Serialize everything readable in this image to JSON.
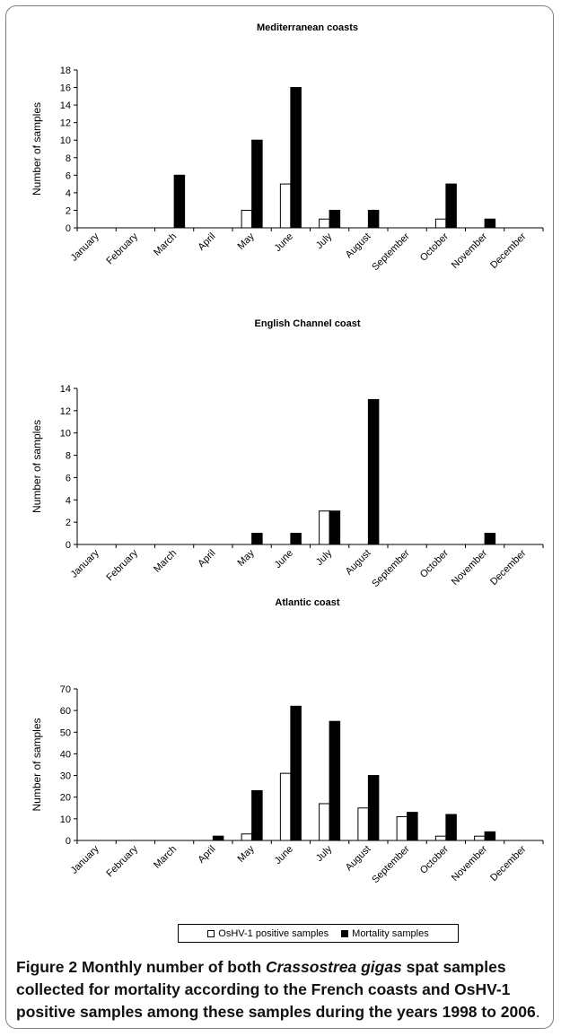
{
  "chart_data": [
    {
      "type": "bar",
      "title": "Mediterranean coasts",
      "ylabel": "Number of samples",
      "ylim": [
        0,
        18
      ],
      "yticks": [
        0,
        2,
        4,
        6,
        8,
        10,
        12,
        14,
        16,
        18
      ],
      "categories": [
        "January",
        "February",
        "March",
        "April",
        "May",
        "June",
        "July",
        "August",
        "September",
        "October",
        "November",
        "December"
      ],
      "series": [
        {
          "name": "OsHV-1 positive samples",
          "values": [
            0,
            0,
            0,
            0,
            2,
            5,
            1,
            0,
            0,
            1,
            0,
            0
          ]
        },
        {
          "name": "Mortality samples",
          "values": [
            0,
            0,
            6,
            0,
            10,
            16,
            2,
            2,
            0,
            5,
            1,
            0
          ]
        }
      ]
    },
    {
      "type": "bar",
      "title": "English Channel coast",
      "ylabel": "Number of samples",
      "ylim": [
        0,
        14
      ],
      "yticks": [
        0,
        2,
        4,
        6,
        8,
        10,
        12,
        14
      ],
      "categories": [
        "January",
        "February",
        "March",
        "April",
        "May",
        "June",
        "July",
        "August",
        "September",
        "October",
        "November",
        "December"
      ],
      "series": [
        {
          "name": "OsHV-1 positive samples",
          "values": [
            0,
            0,
            0,
            0,
            0,
            0,
            3,
            0,
            0,
            0,
            0,
            0
          ]
        },
        {
          "name": "Mortality samples",
          "values": [
            0,
            0,
            0,
            0,
            1,
            1,
            3,
            13,
            0,
            0,
            1,
            0
          ]
        }
      ]
    },
    {
      "type": "bar",
      "title": "Atlantic coast",
      "ylabel": "Number of samples",
      "ylim": [
        0,
        70
      ],
      "yticks": [
        0,
        10,
        20,
        30,
        40,
        50,
        60,
        70
      ],
      "categories": [
        "January",
        "February",
        "March",
        "April",
        "May",
        "June",
        "July",
        "August",
        "September",
        "October",
        "November",
        "December"
      ],
      "series": [
        {
          "name": "OsHV-1 positive samples",
          "values": [
            0,
            0,
            0,
            0,
            3,
            31,
            17,
            15,
            11,
            2,
            2,
            0
          ]
        },
        {
          "name": "Mortality samples",
          "values": [
            0,
            0,
            0,
            2,
            23,
            62,
            55,
            30,
            13,
            12,
            4,
            0
          ]
        }
      ]
    }
  ],
  "legend": {
    "items": [
      {
        "label": "OsHV-1 positive samples",
        "color": "#ffffff"
      },
      {
        "label": "Mortality samples",
        "color": "#000000"
      }
    ]
  },
  "caption": {
    "lead": "Figure 2",
    "part1": " Monthly number of both ",
    "species": "Crassostrea gigas",
    "part2": " spat samples collected for mortality according to the French coasts and OsHV-1 positive samples among these samples during the years 1998 to 2006",
    "end": "."
  }
}
